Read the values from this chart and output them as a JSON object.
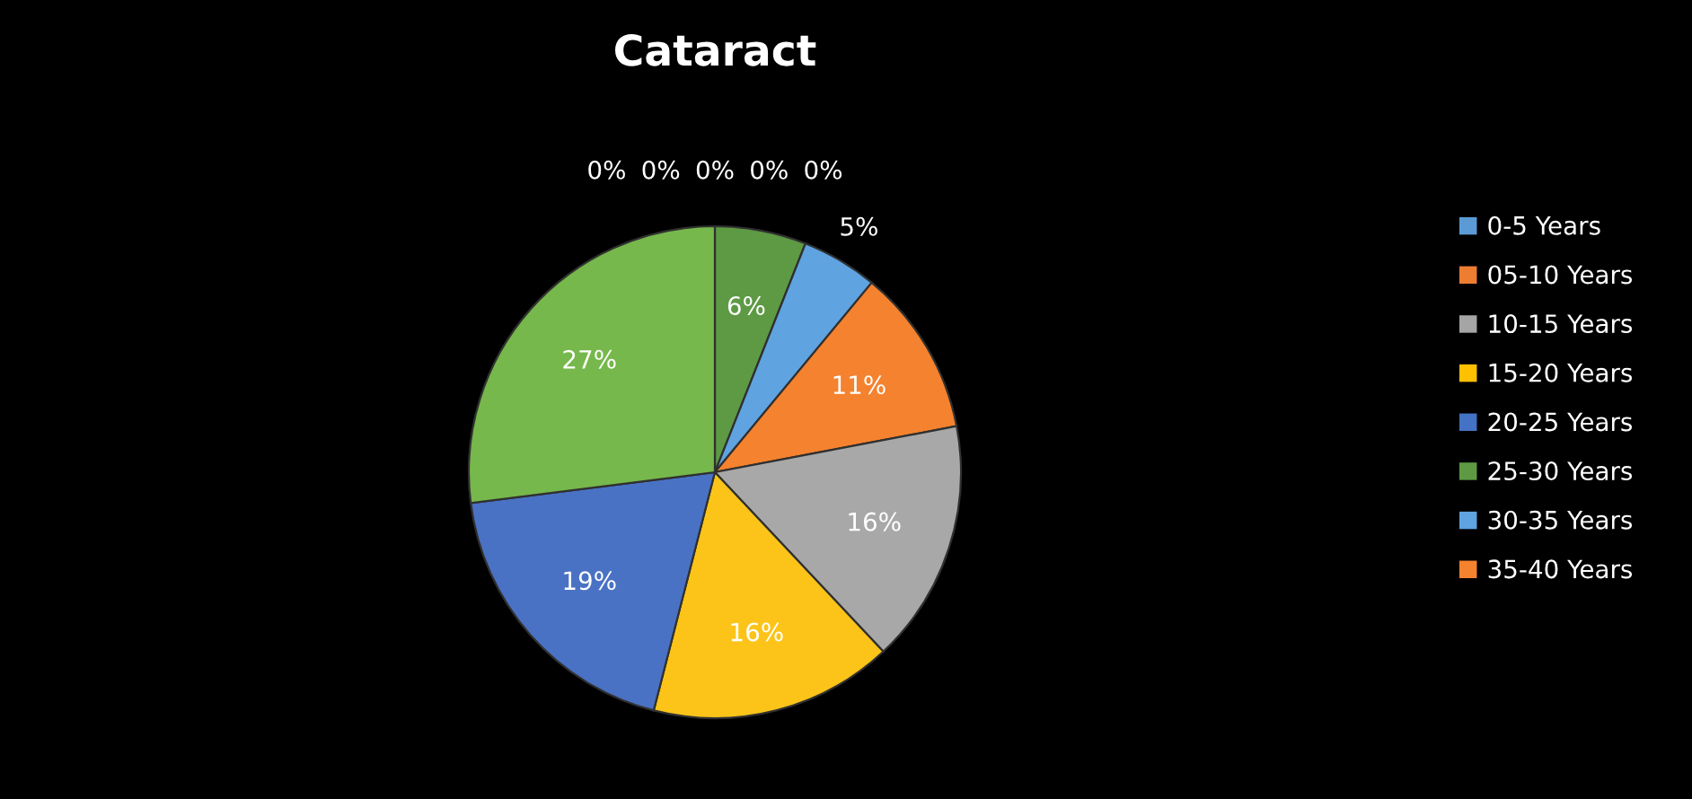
{
  "chart_data": {
    "type": "pie",
    "title": "Cataract",
    "categories": [
      "0-5 Years",
      "05-10 Years",
      "10-15 Years",
      "15-20 Years",
      "20-25 Years",
      "25-30 Years",
      "30-35 Years",
      "35-40 Years",
      null,
      null,
      null,
      null
    ],
    "values": [
      0,
      0,
      0,
      0,
      0,
      6,
      5,
      11,
      16,
      16,
      19,
      27
    ],
    "colors": [
      "#5b9bd5",
      "#ed7d31",
      "#a5a5a5",
      "#ffc000",
      "#4472c4",
      "#5e9a44",
      "#5fa3e0",
      "#f5822e",
      "#a8a8a8",
      "#fcc419",
      "#4a72c4",
      "#76b84b"
    ],
    "value_labels": [
      "0%",
      "0%",
      "0%",
      "0%",
      "0%",
      "6%",
      "5%",
      "11%",
      "16%",
      "16%",
      "19%",
      "27%"
    ],
    "legend": "right"
  }
}
